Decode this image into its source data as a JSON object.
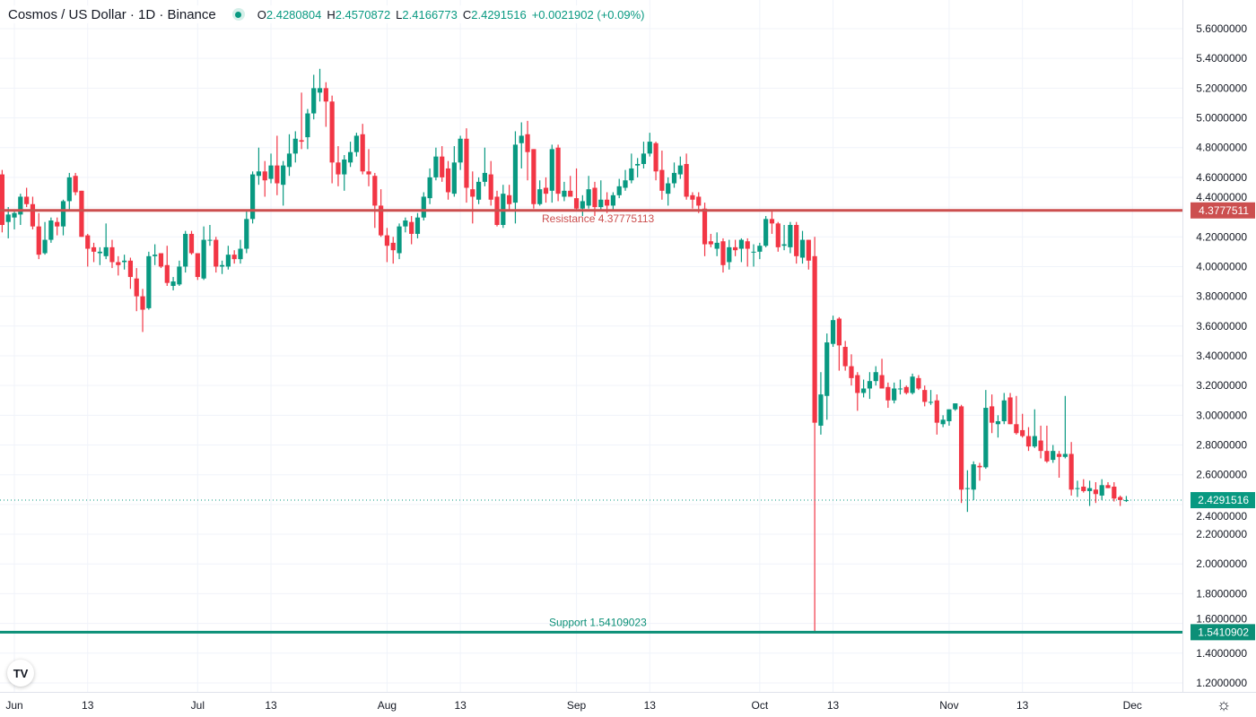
{
  "header": {
    "title": "Cosmos / US Dollar · 1D · Binance",
    "status_icon": "market-open-dot-icon",
    "o_label": "O",
    "o_value": "2.4280804",
    "h_label": "H",
    "h_value": "2.4570872",
    "l_label": "L",
    "l_value": "2.4166773",
    "c_label": "C",
    "c_value": "2.4291516",
    "change": "+0.0021902 (+0.09%)"
  },
  "logo_text": "TV",
  "settings_icon": "gear-icon",
  "colors": {
    "up": "#089981",
    "down": "#f23645",
    "resistance": "#cc4f4f",
    "support": "#0b8f77",
    "grid": "#f0f3fa"
  },
  "chart_data": {
    "type": "candlestick",
    "title": "Cosmos / US Dollar · 1D · Binance",
    "first_date": "May 30",
    "last_date": "Nov 30",
    "ylim": [
      1.13,
      5.69
    ],
    "y_ticks": [
      "5.6000000",
      "5.4000000",
      "5.2000000",
      "5.0000000",
      "4.8000000",
      "4.6000000",
      "4.4000000",
      "4.2000000",
      "4.0000000",
      "3.8000000",
      "3.6000000",
      "3.4000000",
      "3.2000000",
      "3.0000000",
      "2.8000000",
      "2.6000000",
      "2.4000000",
      "2.2000000",
      "2.0000000",
      "1.8000000",
      "1.6000000",
      "1.4000000",
      "1.2000000"
    ],
    "x_ticks": [
      {
        "label": "Jun",
        "day": 2
      },
      {
        "label": "13",
        "day": 14
      },
      {
        "label": "Jul",
        "day": 32
      },
      {
        "label": "13",
        "day": 44
      },
      {
        "label": "Aug",
        "day": 63
      },
      {
        "label": "13",
        "day": 75
      },
      {
        "label": "Sep",
        "day": 94
      },
      {
        "label": "13",
        "day": 106
      },
      {
        "label": "Oct",
        "day": 124
      },
      {
        "label": "13",
        "day": 136
      },
      {
        "label": "Nov",
        "day": 155
      },
      {
        "label": "13",
        "day": 167
      },
      {
        "label": "Dec",
        "day": 185
      }
    ],
    "resistance": {
      "label": "Resistance 4.37775113",
      "value": 4.37775113,
      "tag": "4.3777511"
    },
    "support": {
      "label": "Support 1.54109023",
      "value": 1.54109023,
      "tag": "1.5410902"
    },
    "last_price": {
      "value": 2.4291516,
      "tag": "2.4291516"
    },
    "candles_ohlc": [
      [
        4.62,
        4.65,
        4.23,
        4.28
      ],
      [
        4.3,
        4.4,
        4.19,
        4.35
      ],
      [
        4.33,
        4.38,
        4.25,
        4.36
      ],
      [
        4.35,
        4.49,
        4.28,
        4.47
      ],
      [
        4.47,
        4.53,
        4.4,
        4.42
      ],
      [
        4.42,
        4.47,
        4.25,
        4.27
      ],
      [
        4.27,
        4.36,
        4.05,
        4.08
      ],
      [
        4.09,
        4.3,
        4.08,
        4.18
      ],
      [
        4.18,
        4.33,
        4.16,
        4.31
      ],
      [
        4.3,
        4.33,
        4.21,
        4.27
      ],
      [
        4.27,
        4.45,
        4.21,
        4.44
      ],
      [
        4.44,
        4.63,
        4.38,
        4.6
      ],
      [
        4.61,
        4.63,
        4.48,
        4.5
      ],
      [
        4.51,
        4.51,
        4.2,
        4.2
      ],
      [
        4.21,
        4.22,
        4.0,
        4.12
      ],
      [
        4.13,
        4.16,
        4.03,
        4.1
      ],
      [
        4.09,
        4.13,
        4.01,
        4.1
      ],
      [
        4.07,
        4.29,
        4.05,
        4.13
      ],
      [
        4.13,
        4.18,
        3.99,
        4.03
      ],
      [
        4.03,
        4.07,
        3.94,
        4.01
      ],
      [
        4.03,
        4.08,
        3.98,
        4.04
      ],
      [
        4.04,
        4.06,
        3.85,
        3.93
      ],
      [
        3.92,
        3.99,
        3.7,
        3.8
      ],
      [
        3.8,
        3.85,
        3.56,
        3.71
      ],
      [
        3.72,
        4.1,
        3.71,
        4.07
      ],
      [
        4.07,
        4.15,
        4.01,
        4.08
      ],
      [
        4.09,
        4.09,
        3.99,
        4.0
      ],
      [
        4.01,
        4.14,
        3.87,
        3.89
      ],
      [
        3.87,
        3.93,
        3.84,
        3.9
      ],
      [
        3.88,
        4.04,
        3.87,
        4.0
      ],
      [
        4.0,
        4.24,
        3.96,
        4.22
      ],
      [
        4.22,
        4.24,
        4.08,
        4.09
      ],
      [
        4.09,
        4.09,
        3.91,
        3.93
      ],
      [
        3.92,
        4.27,
        3.91,
        4.18
      ],
      [
        4.18,
        4.28,
        4.14,
        4.18
      ],
      [
        4.18,
        4.2,
        3.96,
        4.0
      ],
      [
        4.0,
        4.04,
        3.95,
        4.01
      ],
      [
        4.0,
        4.14,
        3.98,
        4.08
      ],
      [
        4.08,
        4.11,
        4.02,
        4.05
      ],
      [
        4.05,
        4.18,
        4.02,
        4.12
      ],
      [
        4.12,
        4.37,
        4.09,
        4.32
      ],
      [
        4.32,
        4.64,
        4.29,
        4.62
      ],
      [
        4.61,
        4.8,
        4.55,
        4.64
      ],
      [
        4.64,
        4.71,
        4.47,
        4.58
      ],
      [
        4.59,
        4.76,
        4.56,
        4.68
      ],
      [
        4.68,
        4.88,
        4.48,
        4.56
      ],
      [
        4.55,
        4.71,
        4.41,
        4.68
      ],
      [
        4.67,
        4.89,
        4.61,
        4.76
      ],
      [
        4.76,
        4.91,
        4.7,
        4.86
      ],
      [
        4.85,
        5.17,
        4.79,
        4.84
      ],
      [
        4.87,
        5.06,
        4.79,
        5.03
      ],
      [
        5.03,
        5.29,
        4.99,
        5.2
      ],
      [
        5.17,
        5.33,
        5.11,
        5.2
      ],
      [
        5.2,
        5.24,
        4.94,
        5.11
      ],
      [
        5.11,
        5.15,
        4.56,
        4.7
      ],
      [
        4.7,
        4.81,
        4.54,
        4.62
      ],
      [
        4.62,
        4.75,
        4.51,
        4.72
      ],
      [
        4.7,
        4.84,
        4.67,
        4.77
      ],
      [
        4.77,
        4.9,
        4.74,
        4.88
      ],
      [
        4.89,
        4.96,
        4.62,
        4.64
      ],
      [
        4.64,
        4.79,
        4.54,
        4.62
      ],
      [
        4.61,
        4.63,
        4.26,
        4.41
      ],
      [
        4.41,
        4.52,
        4.2,
        4.21
      ],
      [
        4.21,
        4.26,
        4.03,
        4.14
      ],
      [
        4.16,
        4.2,
        4.02,
        4.11
      ],
      [
        4.09,
        4.29,
        4.05,
        4.27
      ],
      [
        4.27,
        4.33,
        4.23,
        4.31
      ],
      [
        4.3,
        4.34,
        4.15,
        4.22
      ],
      [
        4.22,
        4.36,
        4.19,
        4.33
      ],
      [
        4.33,
        4.5,
        4.31,
        4.47
      ],
      [
        4.46,
        4.66,
        4.42,
        4.6
      ],
      [
        4.6,
        4.8,
        4.58,
        4.74
      ],
      [
        4.74,
        4.81,
        4.57,
        4.6
      ],
      [
        4.66,
        4.71,
        4.45,
        4.5
      ],
      [
        4.49,
        4.81,
        4.47,
        4.7
      ],
      [
        4.7,
        4.88,
        4.65,
        4.86
      ],
      [
        4.86,
        4.93,
        4.43,
        4.53
      ],
      [
        4.52,
        4.64,
        4.29,
        4.47
      ],
      [
        4.45,
        4.6,
        4.42,
        4.57
      ],
      [
        4.57,
        4.8,
        4.54,
        4.63
      ],
      [
        4.62,
        4.71,
        4.41,
        4.45
      ],
      [
        4.47,
        4.51,
        4.27,
        4.28
      ],
      [
        4.28,
        4.55,
        4.26,
        4.49
      ],
      [
        4.48,
        4.55,
        4.38,
        4.42
      ],
      [
        4.43,
        4.91,
        4.29,
        4.82
      ],
      [
        4.83,
        4.97,
        4.66,
        4.88
      ],
      [
        4.89,
        4.98,
        4.58,
        4.77
      ],
      [
        4.79,
        4.79,
        4.39,
        4.42
      ],
      [
        4.42,
        4.58,
        4.41,
        4.52
      ],
      [
        4.53,
        4.6,
        4.43,
        4.49
      ],
      [
        4.51,
        4.82,
        4.43,
        4.79
      ],
      [
        4.8,
        4.82,
        4.44,
        4.49
      ],
      [
        4.47,
        4.57,
        4.44,
        4.51
      ],
      [
        4.51,
        4.61,
        4.47,
        4.47
      ],
      [
        4.46,
        4.66,
        4.38,
        4.39
      ],
      [
        4.39,
        4.48,
        4.34,
        4.44
      ],
      [
        4.41,
        4.61,
        4.39,
        4.52
      ],
      [
        4.53,
        4.57,
        4.34,
        4.4
      ],
      [
        4.4,
        4.58,
        4.38,
        4.45
      ],
      [
        4.45,
        4.5,
        4.36,
        4.41
      ],
      [
        4.41,
        4.5,
        4.38,
        4.48
      ],
      [
        4.48,
        4.59,
        4.46,
        4.54
      ],
      [
        4.53,
        4.65,
        4.51,
        4.58
      ],
      [
        4.58,
        4.76,
        4.56,
        4.66
      ],
      [
        4.68,
        4.73,
        4.6,
        4.69
      ],
      [
        4.69,
        4.84,
        4.66,
        4.76
      ],
      [
        4.76,
        4.9,
        4.74,
        4.84
      ],
      [
        4.83,
        4.84,
        4.58,
        4.64
      ],
      [
        4.65,
        4.78,
        4.45,
        4.51
      ],
      [
        4.49,
        4.6,
        4.41,
        4.56
      ],
      [
        4.56,
        4.7,
        4.53,
        4.63
      ],
      [
        4.62,
        4.74,
        4.59,
        4.68
      ],
      [
        4.69,
        4.76,
        4.45,
        4.47
      ],
      [
        4.48,
        4.5,
        4.39,
        4.45
      ],
      [
        4.47,
        4.5,
        4.36,
        4.41
      ],
      [
        4.39,
        4.43,
        4.07,
        4.15
      ],
      [
        4.17,
        4.22,
        4.13,
        4.15
      ],
      [
        4.12,
        4.23,
        4.07,
        4.16
      ],
      [
        4.17,
        4.19,
        3.96,
        4.01
      ],
      [
        4.03,
        4.18,
        3.98,
        4.13
      ],
      [
        4.13,
        4.18,
        4.07,
        4.11
      ],
      [
        4.12,
        4.19,
        4.03,
        4.18
      ],
      [
        4.17,
        4.19,
        4.0,
        4.12
      ],
      [
        4.1,
        4.15,
        4.0,
        4.1
      ],
      [
        4.1,
        4.16,
        4.05,
        4.14
      ],
      [
        4.14,
        4.34,
        4.13,
        4.32
      ],
      [
        4.32,
        4.37,
        4.22,
        4.29
      ],
      [
        4.29,
        4.3,
        4.1,
        4.13
      ],
      [
        4.14,
        4.28,
        4.11,
        4.15
      ],
      [
        4.13,
        4.3,
        4.09,
        4.28
      ],
      [
        4.28,
        4.3,
        4.02,
        4.07
      ],
      [
        4.06,
        4.24,
        4.02,
        4.18
      ],
      [
        4.18,
        4.18,
        3.98,
        4.04
      ],
      [
        4.07,
        4.2,
        1.54,
        2.95
      ],
      [
        2.93,
        3.29,
        2.87,
        3.14
      ],
      [
        3.13,
        3.55,
        2.97,
        3.49
      ],
      [
        3.48,
        3.67,
        3.46,
        3.64
      ],
      [
        3.65,
        3.66,
        3.3,
        3.47
      ],
      [
        3.46,
        3.5,
        3.3,
        3.33
      ],
      [
        3.33,
        3.41,
        3.2,
        3.25
      ],
      [
        3.27,
        3.29,
        3.03,
        3.15
      ],
      [
        3.15,
        3.24,
        3.12,
        3.18
      ],
      [
        3.18,
        3.29,
        3.11,
        3.23
      ],
      [
        3.23,
        3.33,
        3.2,
        3.29
      ],
      [
        3.27,
        3.38,
        3.2,
        3.18
      ],
      [
        3.19,
        3.22,
        3.05,
        3.1
      ],
      [
        3.1,
        3.22,
        3.08,
        3.18
      ],
      [
        3.18,
        3.24,
        3.14,
        3.18
      ],
      [
        3.19,
        3.2,
        3.14,
        3.15
      ],
      [
        3.15,
        3.28,
        3.14,
        3.26
      ],
      [
        3.25,
        3.27,
        3.17,
        3.18
      ],
      [
        3.17,
        3.2,
        3.06,
        3.09
      ],
      [
        3.09,
        3.17,
        3.07,
        3.09
      ],
      [
        3.1,
        3.14,
        2.87,
        2.95
      ],
      [
        2.94,
        3.0,
        2.92,
        2.97
      ],
      [
        2.96,
        3.04,
        2.93,
        3.04
      ],
      [
        3.04,
        3.08,
        3.03,
        3.08
      ],
      [
        3.06,
        3.07,
        2.41,
        2.5
      ],
      [
        2.51,
        2.63,
        2.35,
        2.51
      ],
      [
        2.5,
        2.69,
        2.43,
        2.67
      ],
      [
        2.66,
        2.68,
        2.56,
        2.65
      ],
      [
        2.65,
        3.17,
        2.64,
        3.05
      ],
      [
        3.06,
        3.14,
        2.88,
        2.95
      ],
      [
        2.94,
        3.0,
        2.85,
        2.96
      ],
      [
        2.96,
        3.15,
        2.94,
        3.1
      ],
      [
        3.12,
        3.15,
        2.94,
        2.94
      ],
      [
        2.94,
        3.13,
        2.87,
        2.88
      ],
      [
        2.9,
        3.01,
        2.85,
        2.86
      ],
      [
        2.86,
        2.92,
        2.76,
        2.79
      ],
      [
        2.79,
        3.04,
        2.78,
        2.86
      ],
      [
        2.83,
        2.93,
        2.71,
        2.76
      ],
      [
        2.76,
        2.93,
        2.68,
        2.69
      ],
      [
        2.7,
        2.8,
        2.68,
        2.76
      ],
      [
        2.74,
        2.76,
        2.58,
        2.72
      ],
      [
        2.72,
        3.13,
        2.71,
        2.74
      ],
      [
        2.74,
        2.82,
        2.46,
        2.5
      ],
      [
        2.51,
        2.56,
        2.45,
        2.51
      ],
      [
        2.52,
        2.57,
        2.48,
        2.49
      ],
      [
        2.49,
        2.56,
        2.39,
        2.51
      ],
      [
        2.5,
        2.55,
        2.41,
        2.47
      ],
      [
        2.46,
        2.57,
        2.43,
        2.53
      ],
      [
        2.53,
        2.55,
        2.51,
        2.51
      ],
      [
        2.52,
        2.55,
        2.42,
        2.44
      ],
      [
        2.45,
        2.46,
        2.39,
        2.43
      ],
      [
        2.428,
        2.457,
        2.417,
        2.429
      ]
    ]
  }
}
